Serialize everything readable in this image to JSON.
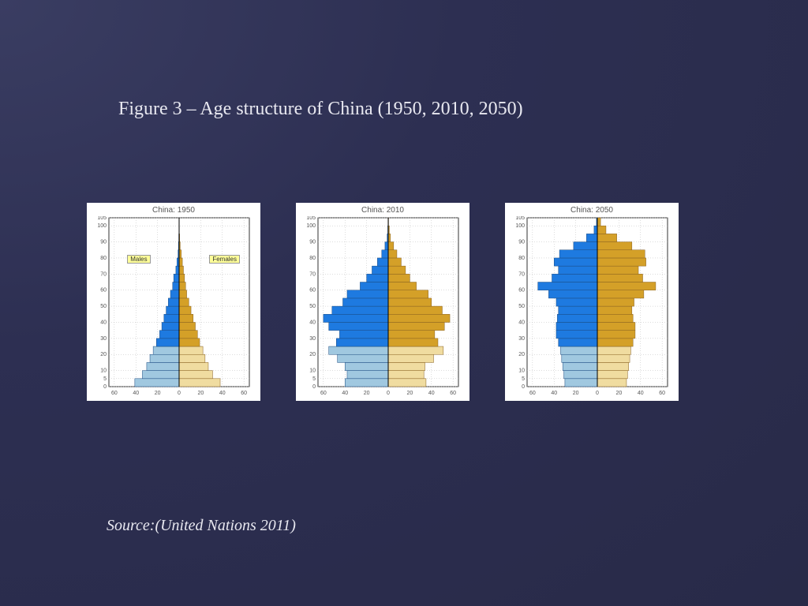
{
  "title": "Figure 3 – Age structure of China (1950, 2010, 2050)",
  "source": "Source:(United Nations 2011)",
  "legend": {
    "males": "Males",
    "females": "Females"
  },
  "colors": {
    "background": "#2c2e50",
    "panel_bg": "#ffffff",
    "grid": "#bbbbbb",
    "axis": "#000000",
    "text": "#555555",
    "male_top": "#1e7ae0",
    "male_bottom": "#a0c8e0",
    "female_top": "#d4a028",
    "female_bottom": "#f0dca0",
    "bar_outline": "#1a4a80",
    "bar_outline_f": "#886020",
    "legend_bg": "#ffff99"
  },
  "axes": {
    "x_ticks": [
      -60,
      -40,
      -20,
      0,
      20,
      40,
      60
    ],
    "x_tick_labels": [
      "60",
      "40",
      "20",
      "0",
      "20",
      "40",
      "60"
    ],
    "y_ticks": [
      0,
      5,
      10,
      20,
      30,
      40,
      50,
      60,
      70,
      80,
      90,
      100,
      105
    ],
    "y_tick_labels": [
      "0",
      "5",
      "10",
      "20",
      "30",
      "40",
      "50",
      "60",
      "70",
      "80",
      "90",
      "100",
      "105"
    ],
    "xlim": [
      -65,
      65
    ],
    "ylim": [
      0,
      105
    ],
    "band_height": 5,
    "light_cutoff_age": 25,
    "tick_fontsize": 7
  },
  "pyramids": [
    {
      "title": "China: 1950",
      "show_legend": true,
      "bands": [
        {
          "age": 0,
          "male": 41,
          "female": 38
        },
        {
          "age": 5,
          "male": 34,
          "female": 31
        },
        {
          "age": 10,
          "male": 30,
          "female": 27
        },
        {
          "age": 15,
          "male": 27,
          "female": 24
        },
        {
          "age": 20,
          "male": 24,
          "female": 22
        },
        {
          "age": 25,
          "male": 21,
          "female": 19
        },
        {
          "age": 30,
          "male": 18,
          "female": 17
        },
        {
          "age": 35,
          "male": 16,
          "female": 15
        },
        {
          "age": 40,
          "male": 14,
          "female": 13
        },
        {
          "age": 45,
          "male": 12,
          "female": 11
        },
        {
          "age": 50,
          "male": 10,
          "female": 9
        },
        {
          "age": 55,
          "male": 8,
          "female": 7
        },
        {
          "age": 60,
          "male": 6,
          "female": 6
        },
        {
          "age": 65,
          "male": 5,
          "female": 5
        },
        {
          "age": 70,
          "male": 3,
          "female": 4
        },
        {
          "age": 75,
          "male": 2,
          "female": 3
        },
        {
          "age": 80,
          "male": 1,
          "female": 2
        },
        {
          "age": 85,
          "male": 0.6,
          "female": 1
        },
        {
          "age": 90,
          "male": 0.3,
          "female": 0.5
        },
        {
          "age": 95,
          "male": 0.1,
          "female": 0.2
        }
      ]
    },
    {
      "title": "China: 2010",
      "show_legend": false,
      "bands": [
        {
          "age": 0,
          "male": 40,
          "female": 35
        },
        {
          "age": 5,
          "male": 38,
          "female": 33
        },
        {
          "age": 10,
          "male": 40,
          "female": 34
        },
        {
          "age": 15,
          "male": 47,
          "female": 42
        },
        {
          "age": 20,
          "male": 55,
          "female": 51
        },
        {
          "age": 25,
          "male": 48,
          "female": 46
        },
        {
          "age": 30,
          "male": 45,
          "female": 43
        },
        {
          "age": 35,
          "male": 55,
          "female": 52
        },
        {
          "age": 40,
          "male": 60,
          "female": 57
        },
        {
          "age": 45,
          "male": 52,
          "female": 50
        },
        {
          "age": 50,
          "male": 42,
          "female": 40
        },
        {
          "age": 55,
          "male": 38,
          "female": 37
        },
        {
          "age": 60,
          "male": 26,
          "female": 26
        },
        {
          "age": 65,
          "male": 20,
          "female": 20
        },
        {
          "age": 70,
          "male": 15,
          "female": 16
        },
        {
          "age": 75,
          "male": 10,
          "female": 12
        },
        {
          "age": 80,
          "male": 6,
          "female": 8
        },
        {
          "age": 85,
          "male": 3,
          "female": 5
        },
        {
          "age": 90,
          "male": 1,
          "female": 2
        },
        {
          "age": 95,
          "male": 0.4,
          "female": 1
        },
        {
          "age": 100,
          "male": 0.1,
          "female": 0.3
        }
      ]
    },
    {
      "title": "China: 2050",
      "show_legend": false,
      "bands": [
        {
          "age": 0,
          "male": 30,
          "female": 27
        },
        {
          "age": 5,
          "male": 31,
          "female": 28
        },
        {
          "age": 10,
          "male": 32,
          "female": 29
        },
        {
          "age": 15,
          "male": 33,
          "female": 30
        },
        {
          "age": 20,
          "male": 34,
          "female": 31
        },
        {
          "age": 25,
          "male": 36,
          "female": 33
        },
        {
          "age": 30,
          "male": 38,
          "female": 35
        },
        {
          "age": 35,
          "male": 38,
          "female": 35
        },
        {
          "age": 40,
          "male": 37,
          "female": 33
        },
        {
          "age": 45,
          "male": 36,
          "female": 32
        },
        {
          "age": 50,
          "male": 38,
          "female": 34
        },
        {
          "age": 55,
          "male": 45,
          "female": 43
        },
        {
          "age": 60,
          "male": 55,
          "female": 54
        },
        {
          "age": 65,
          "male": 42,
          "female": 42
        },
        {
          "age": 70,
          "male": 36,
          "female": 38
        },
        {
          "age": 75,
          "male": 40,
          "female": 45
        },
        {
          "age": 80,
          "male": 35,
          "female": 44
        },
        {
          "age": 85,
          "male": 22,
          "female": 32
        },
        {
          "age": 90,
          "male": 10,
          "female": 18
        },
        {
          "age": 95,
          "male": 3,
          "female": 8
        },
        {
          "age": 100,
          "male": 0.8,
          "female": 3
        }
      ]
    }
  ]
}
